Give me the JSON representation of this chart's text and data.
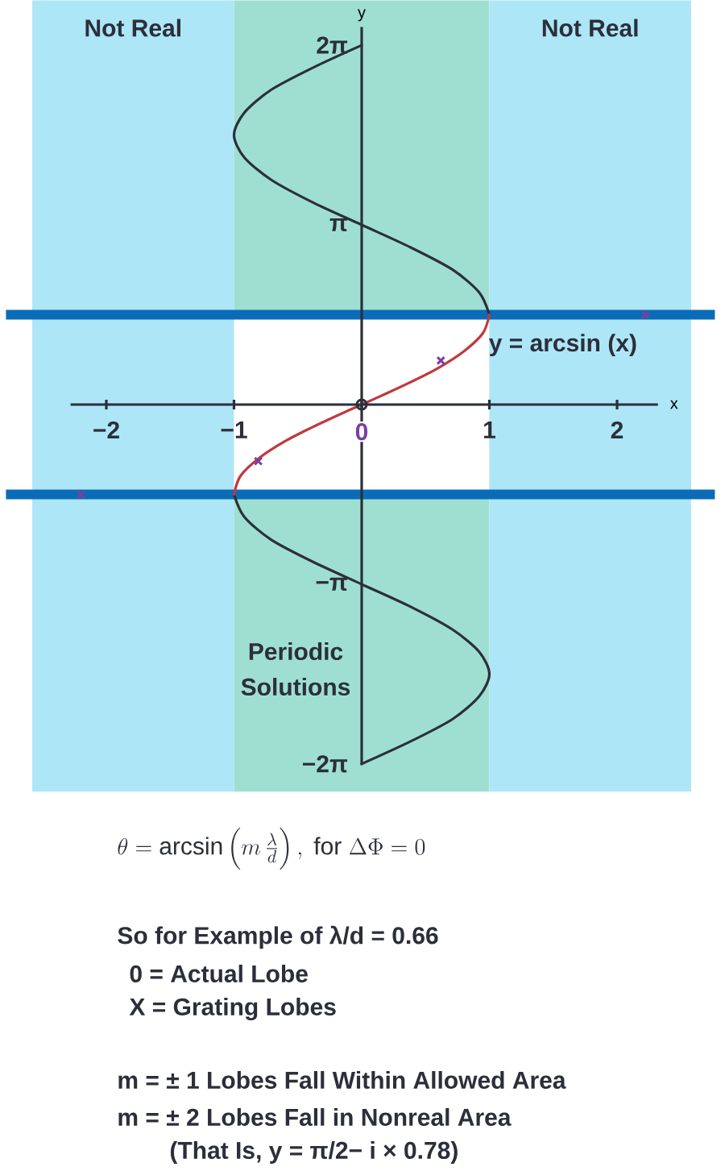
{
  "chart_data": {
    "type": "line",
    "xlabel": "x",
    "ylabel": "y",
    "xlim": [
      -2.28,
      2.32
    ],
    "ylim": [
      -6.3,
      6.6
    ],
    "xticks": [
      {
        "value": -2,
        "label": "−2"
      },
      {
        "value": -1,
        "label": "−1"
      },
      {
        "value": 0,
        "label": "0"
      },
      {
        "value": 1,
        "label": "1"
      },
      {
        "value": 2,
        "label": "2"
      }
    ],
    "yticks": [
      {
        "value": 6.28,
        "label": "2π"
      },
      {
        "value": 3.14,
        "label": "π"
      },
      {
        "value": -3.14,
        "label": "−π"
      },
      {
        "value": -6.28,
        "label": "−2π"
      }
    ],
    "bands": [
      {
        "axis": "x",
        "from": -2.58,
        "to": -1,
        "label": "Not Real",
        "color": "#ade6f7"
      },
      {
        "axis": "x",
        "from": -1,
        "to": 1,
        "label": "Periodic Solutions",
        "color": "#9fdfd1"
      },
      {
        "axis": "x",
        "from": 1,
        "to": 2.58,
        "label": "Not Real",
        "color": "#ade6f7"
      }
    ],
    "ref_lines": [
      {
        "axis": "y",
        "value": 1.57,
        "color": "#0a6cb8",
        "line_style": "solid"
      },
      {
        "axis": "y",
        "value": -1.57,
        "color": "#0a6cb8",
        "line_style": "solid"
      }
    ],
    "series": [
      {
        "type": "line",
        "color": "#2c2f3a",
        "x": [
          1,
          0.92,
          0.71,
          0.38,
          0,
          -0.38,
          -0.71,
          -0.92,
          -1,
          -0.92,
          -0.71,
          -0.38,
          0
        ],
        "values": [
          1.57,
          1.96,
          2.36,
          2.75,
          3.14,
          3.53,
          3.93,
          4.32,
          4.71,
          5.1,
          5.5,
          5.89,
          6.28
        ]
      },
      {
        "type": "line",
        "color": "#2c2f3a",
        "x": [
          -1,
          -0.92,
          -0.71,
          -0.38,
          0,
          0.38,
          0.71,
          0.92,
          1,
          0.92,
          0.71,
          0.38,
          0
        ],
        "values": [
          -1.57,
          -1.96,
          -2.36,
          -2.75,
          -3.14,
          -3.53,
          -3.93,
          -4.32,
          -4.71,
          -5.1,
          -5.5,
          -5.89,
          -6.28
        ]
      },
      {
        "type": "line",
        "name": "y = arcsin (x)",
        "color": "#c0393f",
        "x": [
          -1,
          -0.95,
          -0.8,
          -0.6,
          -0.4,
          -0.2,
          0,
          0.2,
          0.4,
          0.6,
          0.8,
          0.95,
          1
        ],
        "values": [
          -1.57,
          -1.25,
          -0.93,
          -0.64,
          -0.41,
          -0.2,
          0,
          0.2,
          0.41,
          0.64,
          0.93,
          1.25,
          1.57
        ]
      },
      {
        "type": "scatter",
        "marker": "circle",
        "color": "#2c2f3a",
        "x": [
          0
        ],
        "values": [
          0
        ]
      },
      {
        "type": "scatter",
        "marker": "cross",
        "color": "#7b3fa0",
        "x": [
          -2.2,
          -0.81,
          0.62,
          2.22
        ],
        "values": [
          -1.57,
          -0.99,
          0.77,
          1.57
        ]
      }
    ],
    "annotations": [
      "\\theta = \\arcsin\\left(m\\,\\frac{\\lambda}{d}\\right),\\ \\mathrm{for}\\ \\Delta\\Phi = 0",
      "So for Example of λ/d = 0.66",
      "0 = Actual Lobe",
      "X = Grating Lobes",
      "m = ± 1 Lobes Fall Within Allowed Area",
      "m = ± 2 Lobes Fall in Nonreal Area",
      "(That Is, y = π/2− i × 0.78)"
    ]
  }
}
